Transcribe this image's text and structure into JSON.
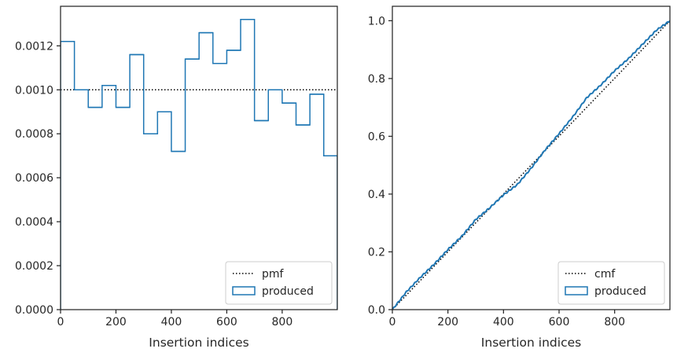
{
  "chart_data": [
    {
      "type": "histogram",
      "xlabel": "Insertion indices",
      "ylabel": "",
      "xlim": [
        0,
        999
      ],
      "ylim": [
        0,
        0.00138
      ],
      "xticks": [
        0,
        200,
        400,
        600,
        800
      ],
      "yticks": [
        0.0,
        0.0002,
        0.0004,
        0.0006,
        0.0008,
        0.001,
        0.0012
      ],
      "xtick_labels": [
        "0",
        "200",
        "400",
        "600",
        "800"
      ],
      "ytick_labels": [
        "0.0000",
        "0.0002",
        "0.0004",
        "0.0006",
        "0.0008",
        "0.0010",
        "0.0012"
      ],
      "bin_edges": [
        0,
        50,
        100,
        150,
        200,
        250,
        300,
        350,
        400,
        450,
        500,
        550,
        600,
        650,
        700,
        750,
        800,
        850,
        900,
        950,
        999
      ],
      "series": [
        {
          "name": "pmf",
          "kind": "reference-line",
          "style": "dotted",
          "color": "#000000",
          "x": [
            0,
            999
          ],
          "y": [
            0.001,
            0.001
          ]
        },
        {
          "name": "produced",
          "kind": "step",
          "color": "#1f77b4",
          "values": [
            0.00122,
            0.001,
            0.00092,
            0.00102,
            0.00092,
            0.00116,
            0.0008,
            0.0009,
            0.00072,
            0.00114,
            0.00126,
            0.00112,
            0.00118,
            0.00132,
            0.00086,
            0.001,
            0.00094,
            0.00084,
            0.00098,
            0.0007
          ]
        }
      ],
      "legend": {
        "placement": "lower-right",
        "entries": [
          "pmf",
          "produced"
        ]
      },
      "grid": false
    },
    {
      "type": "line",
      "xlabel": "Insertion indices",
      "ylabel": "",
      "xlim": [
        0,
        999
      ],
      "ylim": [
        0,
        1.05
      ],
      "xticks": [
        0,
        200,
        400,
        600,
        800
      ],
      "yticks": [
        0.0,
        0.2,
        0.4,
        0.6,
        0.8,
        1.0
      ],
      "xtick_labels": [
        "0",
        "200",
        "400",
        "600",
        "800"
      ],
      "ytick_labels": [
        "0.0",
        "0.2",
        "0.4",
        "0.6",
        "0.8",
        "1.0"
      ],
      "series": [
        {
          "name": "cmf",
          "kind": "reference-line",
          "style": "dotted",
          "color": "#000000",
          "x": [
            0,
            999
          ],
          "y": [
            0,
            1
          ]
        },
        {
          "name": "produced",
          "kind": "line",
          "color": "#1f77b4",
          "x": [
            0,
            50,
            100,
            150,
            200,
            250,
            300,
            350,
            400,
            450,
            500,
            550,
            600,
            650,
            700,
            750,
            800,
            850,
            900,
            950,
            999
          ],
          "y": [
            0.0,
            0.061,
            0.111,
            0.157,
            0.208,
            0.254,
            0.312,
            0.352,
            0.397,
            0.433,
            0.49,
            0.553,
            0.609,
            0.668,
            0.734,
            0.777,
            0.827,
            0.869,
            0.918,
            0.967,
            1.0
          ]
        }
      ],
      "legend": {
        "placement": "lower-right",
        "entries": [
          "cmf",
          "produced"
        ]
      },
      "grid": false
    }
  ]
}
